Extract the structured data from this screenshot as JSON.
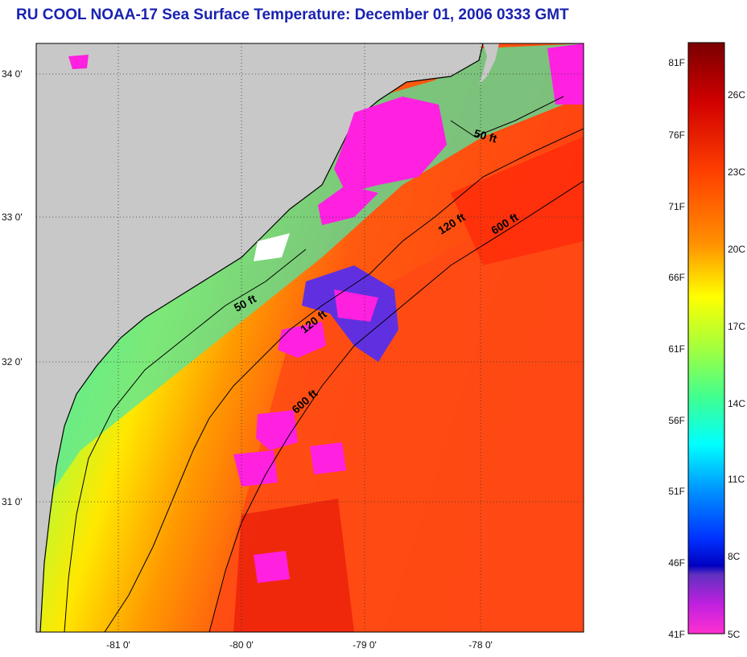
{
  "title": "RU COOL  NOAA-17  Sea Surface Temperature:  December 01, 2006 0333 GMT",
  "map": {
    "lat_labels": [
      "34 0'",
      "33 0'",
      "32 0'",
      "31 0'"
    ],
    "lon_labels": [
      "-81 0'",
      "-80 0'",
      "-79 0'",
      "-78 0'"
    ],
    "contours": [
      {
        "label": "50 ft",
        "depth_ft": 50
      },
      {
        "label": "120 ft",
        "depth_ft": 120
      },
      {
        "label": "600 ft",
        "depth_ft": 600
      }
    ],
    "contour_labels": [
      "50 ft",
      "50 ft",
      "120 ft",
      "120 ft",
      "600 ft",
      "600 ft"
    ]
  },
  "colorbar": {
    "fahrenheit_labels": [
      "81F",
      "76F",
      "71F",
      "66F",
      "61F",
      "56F",
      "51F",
      "46F",
      "41F"
    ],
    "celsius_labels": [
      "26C",
      "23C",
      "20C",
      "17C",
      "14C",
      "11C",
      "8C",
      "5C"
    ],
    "colors": [
      "#7a0000",
      "#ff2000",
      "#ff8000",
      "#ffff00",
      "#40ff80",
      "#00ffff",
      "#0060ff",
      "#0000c0",
      "#ff00ff"
    ]
  },
  "colors": {
    "land": "#c8c8c8",
    "title": "#1a22b0",
    "warm_water": "#ff4a10",
    "cool_water": "#40e0a0",
    "cloud": "#ff20e0"
  }
}
